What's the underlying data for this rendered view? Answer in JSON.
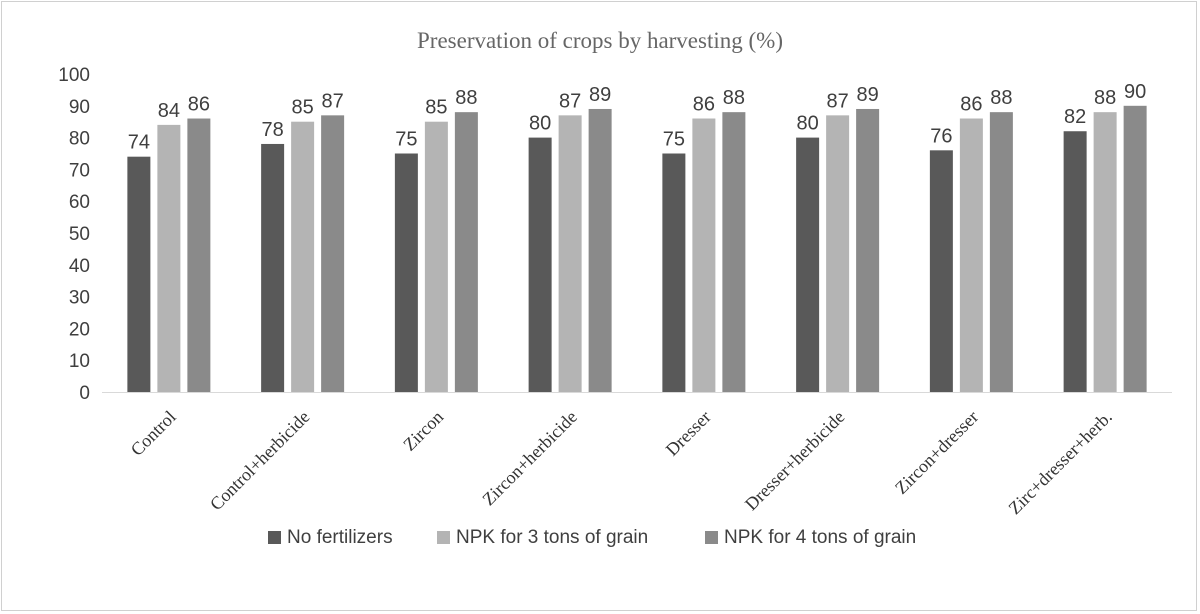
{
  "chart_data": {
    "type": "bar",
    "title": "Preservation of crops by harvesting (%)",
    "categories": [
      "Control",
      "Control+herbicide",
      "Zircon",
      "Zircon+herbicide",
      "Dresser",
      "Dresser+herbicide",
      "Zircon+dresser",
      "Zirc+dresser+herb."
    ],
    "series": [
      {
        "name": "No fertilizers",
        "color": "#595959",
        "values": [
          74,
          78,
          75,
          80,
          75,
          80,
          76,
          82
        ]
      },
      {
        "name": "NPK for 3 tons of grain",
        "color": "#b4b4b4",
        "values": [
          84,
          85,
          85,
          87,
          86,
          87,
          86,
          88
        ]
      },
      {
        "name": "NPK for 4 tons of grain",
        "color": "#8a8a8a",
        "values": [
          86,
          87,
          88,
          89,
          88,
          89,
          88,
          90
        ]
      }
    ],
    "ylim": [
      0,
      100
    ],
    "yticks": [
      0,
      10,
      20,
      30,
      40,
      50,
      60,
      70,
      80,
      90,
      100
    ],
    "xlabel": "",
    "ylabel": "",
    "grid": false,
    "data_labels": true,
    "legend": "bottom"
  }
}
